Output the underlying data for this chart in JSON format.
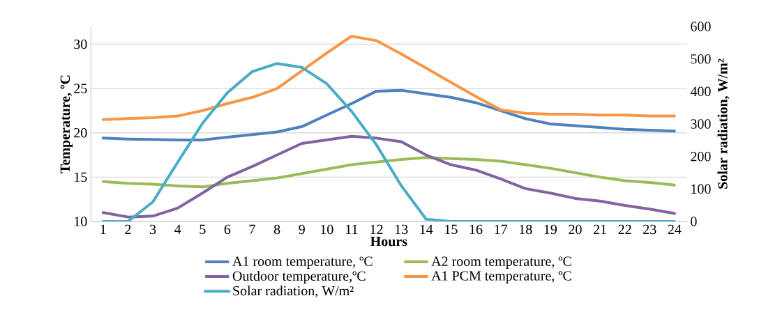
{
  "chart_data": {
    "type": "line",
    "xlabel": "Hours",
    "ylabel": "Temperature, ºC",
    "y2label": "Solar radiation, W/m²",
    "categories": [
      "1",
      "2",
      "3",
      "4",
      "5",
      "6",
      "7",
      "8",
      "9",
      "10",
      "11",
      "12",
      "13",
      "14",
      "15",
      "16",
      "17",
      "18",
      "19",
      "20",
      "21",
      "22",
      "23",
      "24"
    ],
    "series": [
      {
        "name": "A1 room temperature, ºC",
        "color": "#4f81bd",
        "values": [
          19.4,
          19.3,
          19.25,
          19.2,
          19.2,
          19.5,
          19.8,
          20.1,
          20.7,
          22.0,
          23.3,
          24.7,
          24.8,
          24.4,
          24.0,
          23.4,
          22.5,
          21.6,
          21.0,
          20.8,
          20.6,
          20.4,
          20.3,
          20.2
        ]
      },
      {
        "name": "A2 room temperature, ºC",
        "color": "#9bbb59",
        "values": [
          14.5,
          14.3,
          14.2,
          14.0,
          13.9,
          14.3,
          14.6,
          14.9,
          15.4,
          15.9,
          16.4,
          16.7,
          17.0,
          17.2,
          17.1,
          17.0,
          16.8,
          16.4,
          16.0,
          15.5,
          15.0,
          14.6,
          14.4,
          14.1
        ]
      },
      {
        "name": "Outdoor temperature,ºC",
        "color": "#8064a2",
        "values": [
          11.0,
          10.5,
          10.6,
          11.5,
          13.2,
          15.0,
          16.2,
          17.5,
          18.8,
          19.2,
          19.6,
          19.4,
          19.0,
          17.5,
          16.4,
          15.8,
          14.8,
          13.7,
          13.2,
          12.6,
          12.3,
          11.8,
          11.4,
          10.9
        ]
      },
      {
        "name": "A1 PCM temperature, ºC",
        "color": "#f79646",
        "values": [
          21.5,
          21.6,
          21.7,
          21.9,
          22.5,
          23.3,
          24.0,
          25.0,
          27.0,
          29.0,
          30.9,
          30.4,
          28.9,
          27.3,
          25.7,
          24.1,
          22.6,
          22.2,
          22.1,
          22.1,
          22.0,
          22.0,
          21.9,
          21.9
        ]
      },
      {
        "name": "Solar radiation, W/m²",
        "color": "#4bacc6",
        "axis": "y2",
        "values": [
          0,
          0,
          60,
          182,
          302,
          396,
          461,
          486,
          474,
          424,
          339,
          236,
          110,
          7,
          0,
          0,
          0,
          0,
          0,
          0,
          0,
          0,
          0,
          0
        ]
      }
    ],
    "ylim": [
      10,
      32
    ],
    "yticks": [
      10,
      15,
      20,
      25,
      30
    ],
    "y2lim": [
      0,
      600
    ],
    "y2ticks": [
      0,
      100,
      200,
      300,
      400,
      500,
      600
    ],
    "grid": "y",
    "legend": "bottom",
    "marker": "none",
    "line_style": "solid"
  }
}
